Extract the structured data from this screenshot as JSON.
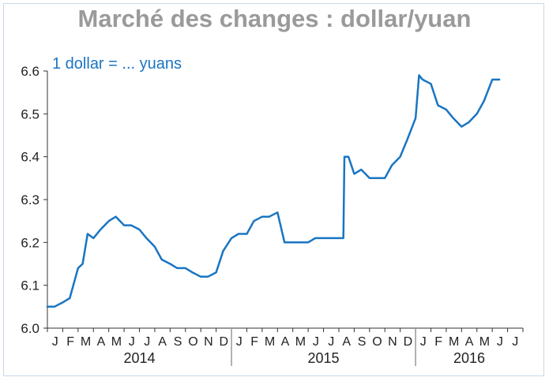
{
  "chart_data": {
    "type": "line",
    "title": "Marché des changes : dollar/yuan",
    "subtitle": "1 dollar = ... yuans",
    "ylim": [
      6.0,
      6.6
    ],
    "yticks": [
      "6.0",
      "6.1",
      "6.2",
      "6.3",
      "6.4",
      "6.5",
      "6.6"
    ],
    "month_labels": [
      "J",
      "F",
      "M",
      "A",
      "M",
      "J",
      "J",
      "A",
      "S",
      "O",
      "N",
      "D",
      "J",
      "F",
      "M",
      "A",
      "M",
      "J",
      "J",
      "A",
      "S",
      "O",
      "N",
      "D",
      "J",
      "F",
      "M",
      "A",
      "M",
      "J",
      "J"
    ],
    "years": [
      "2014",
      "2015",
      "2016"
    ],
    "color": "#1a75c2",
    "grid": false,
    "series": [
      {
        "name": "",
        "x": [
          "2014-01-01",
          "2014-01-15",
          "2014-02-01",
          "2014-02-15",
          "2014-03-01",
          "2014-03-10",
          "2014-03-20",
          "2014-04-01",
          "2014-04-15",
          "2014-05-01",
          "2014-05-15",
          "2014-06-01",
          "2014-06-15",
          "2014-07-01",
          "2014-07-15",
          "2014-08-01",
          "2014-08-15",
          "2014-09-01",
          "2014-09-15",
          "2014-10-01",
          "2014-10-15",
          "2014-11-01",
          "2014-11-15",
          "2014-12-01",
          "2014-12-15",
          "2015-01-01",
          "2015-01-15",
          "2015-02-01",
          "2015-02-15",
          "2015-03-01",
          "2015-03-15",
          "2015-04-01",
          "2015-04-15",
          "2015-05-01",
          "2015-05-15",
          "2015-06-01",
          "2015-06-15",
          "2015-07-01",
          "2015-07-15",
          "2015-08-01",
          "2015-08-10",
          "2015-08-12",
          "2015-08-20",
          "2015-09-01",
          "2015-09-15",
          "2015-10-01",
          "2015-10-15",
          "2015-11-01",
          "2015-11-15",
          "2015-12-01",
          "2015-12-15",
          "2016-01-01",
          "2016-01-08",
          "2016-01-15",
          "2016-02-01",
          "2016-02-15",
          "2016-03-01",
          "2016-03-15",
          "2016-04-01",
          "2016-04-15",
          "2016-05-01",
          "2016-05-15",
          "2016-06-01",
          "2016-06-15"
        ],
        "y": [
          6.05,
          6.05,
          6.06,
          6.07,
          6.14,
          6.15,
          6.22,
          6.21,
          6.23,
          6.25,
          6.26,
          6.24,
          6.24,
          6.23,
          6.21,
          6.19,
          6.16,
          6.15,
          6.14,
          6.14,
          6.13,
          6.12,
          6.12,
          6.13,
          6.18,
          6.21,
          6.22,
          6.22,
          6.25,
          6.26,
          6.26,
          6.27,
          6.2,
          6.2,
          6.2,
          6.2,
          6.21,
          6.21,
          6.21,
          6.21,
          6.21,
          6.4,
          6.4,
          6.36,
          6.37,
          6.35,
          6.35,
          6.35,
          6.38,
          6.4,
          6.44,
          6.49,
          6.59,
          6.58,
          6.57,
          6.52,
          6.51,
          6.49,
          6.47,
          6.48,
          6.5,
          6.53,
          6.58,
          6.58
        ]
      }
    ]
  }
}
